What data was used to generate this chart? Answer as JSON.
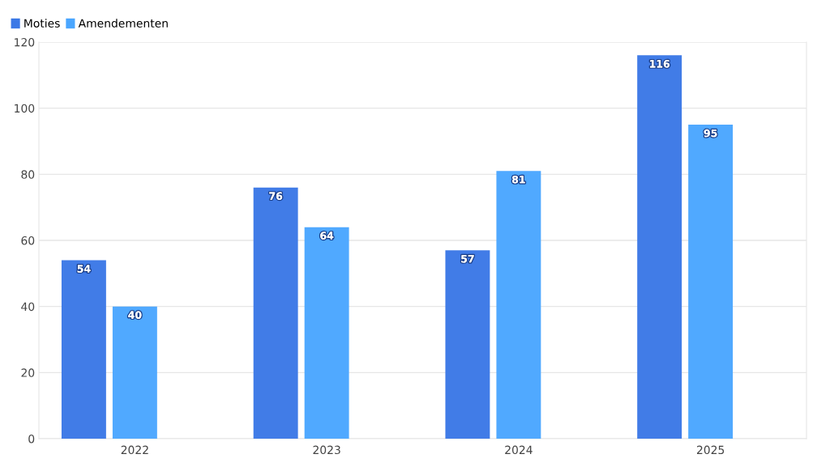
{
  "chart_data": {
    "type": "bar",
    "categories": [
      "2022",
      "2023",
      "2024",
      "2025"
    ],
    "series": [
      {
        "name": "Moties",
        "color": "#3b78e6",
        "values": [
          54,
          76,
          57,
          116
        ]
      },
      {
        "name": "Amendementen",
        "color": "#4aa6ff",
        "values": [
          40,
          64,
          81,
          95
        ]
      }
    ],
    "ylim": [
      0,
      120
    ],
    "yticks": [
      0,
      20,
      40,
      60,
      80,
      100,
      120
    ],
    "grid": "y",
    "legend": "top left",
    "data_labels": true
  }
}
